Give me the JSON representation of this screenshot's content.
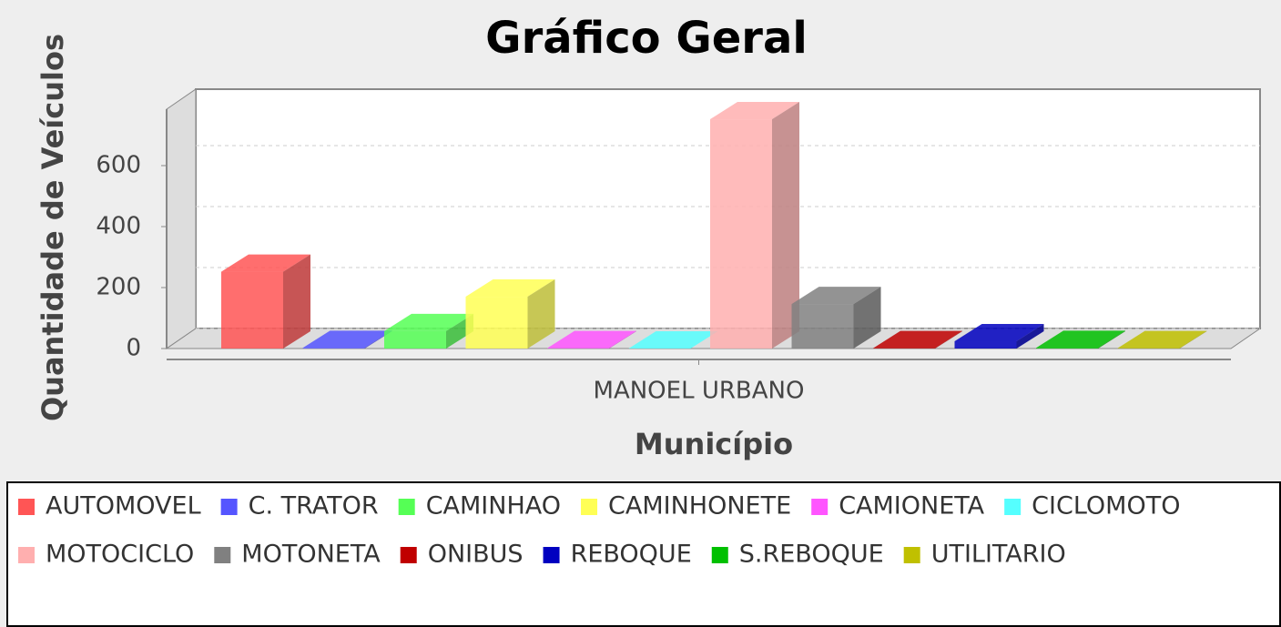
{
  "chart_data": {
    "type": "bar3d",
    "title": "Gráfico Geral",
    "x_label": "Município",
    "y_label": "Quantidade de Veículos",
    "categories": [
      "MANOEL URBANO"
    ],
    "series": [
      {
        "name": "AUTOMOVEL",
        "color": "#ff5555",
        "values": [
          252
        ]
      },
      {
        "name": "C. TRATOR",
        "color": "#5555ff",
        "values": [
          2
        ]
      },
      {
        "name": "CAMINHAO",
        "color": "#55ff55",
        "values": [
          57
        ]
      },
      {
        "name": "CAMINHONETE",
        "color": "#ffff55",
        "values": [
          170
        ]
      },
      {
        "name": "CAMIONETA",
        "color": "#ff55ff",
        "values": [
          1
        ]
      },
      {
        "name": "CICLOMOTO",
        "color": "#55ffff",
        "values": [
          0
        ]
      },
      {
        "name": "MOTOCICLO",
        "color": "#ffafaf",
        "values": [
          752
        ]
      },
      {
        "name": "MOTONETA",
        "color": "#808080",
        "values": [
          146
        ]
      },
      {
        "name": "ONIBUS",
        "color": "#c00000",
        "values": [
          1
        ]
      },
      {
        "name": "REBOQUE",
        "color": "#0000c0",
        "values": [
          24
        ]
      },
      {
        "name": "S.REBOQUE",
        "color": "#00c000",
        "values": [
          2
        ]
      },
      {
        "name": "UTILITARIO",
        "color": "#c0c000",
        "values": [
          1
        ]
      }
    ],
    "ylim": [
      0,
      785
    ],
    "yticks": [
      0,
      200,
      400,
      600
    ],
    "grid": true,
    "legend": "bottom"
  }
}
